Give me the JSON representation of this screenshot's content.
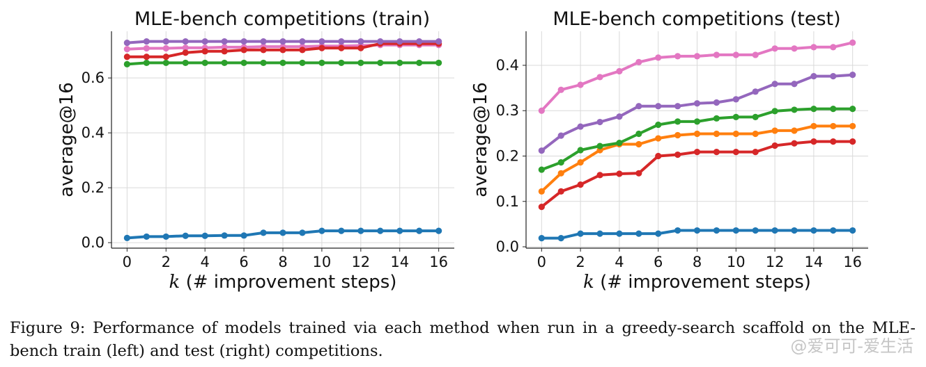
{
  "chart_data": [
    {
      "type": "line",
      "title": "MLE-bench competitions (train)",
      "xlabel_italic": "k",
      "xlabel": " (# improvement steps)",
      "ylabel": "average@16",
      "x": [
        0,
        1,
        2,
        3,
        4,
        5,
        6,
        7,
        8,
        9,
        10,
        11,
        12,
        13,
        14,
        15,
        16
      ],
      "xlim": [
        -0.8,
        16.8
      ],
      "ylim": [
        -0.02,
        0.77
      ],
      "xticks": [
        0,
        2,
        4,
        6,
        8,
        10,
        12,
        14,
        16
      ],
      "yticks": [
        0.0,
        0.2,
        0.4,
        0.6
      ],
      "ytick_labels": [
        "0.0",
        "0.2",
        "0.4",
        "0.6"
      ],
      "grid": true,
      "series": [
        {
          "color": "#1f77b4",
          "values": [
            0.017,
            0.022,
            0.022,
            0.025,
            0.025,
            0.026,
            0.026,
            0.036,
            0.036,
            0.036,
            0.043,
            0.043,
            0.043,
            0.043,
            0.043,
            0.043,
            0.043
          ]
        },
        {
          "color": "#2ca02c",
          "values": [
            0.65,
            0.655,
            0.655,
            0.655,
            0.655,
            0.655,
            0.655,
            0.655,
            0.655,
            0.655,
            0.655,
            0.655,
            0.655,
            0.655,
            0.655,
            0.655,
            0.655
          ]
        },
        {
          "color": "#e377c2",
          "values": [
            0.705,
            0.708,
            0.708,
            0.71,
            0.71,
            0.712,
            0.712,
            0.714,
            0.714,
            0.714,
            0.716,
            0.716,
            0.718,
            0.72,
            0.72,
            0.72,
            0.72
          ]
        },
        {
          "color": "#d62728",
          "values": [
            0.677,
            0.677,
            0.677,
            0.692,
            0.697,
            0.697,
            0.702,
            0.702,
            0.702,
            0.702,
            0.709,
            0.709,
            0.709,
            0.725,
            0.725,
            0.725,
            0.725
          ]
        },
        {
          "color": "#9467bd",
          "values": [
            0.728,
            0.733,
            0.733,
            0.733,
            0.733,
            0.733,
            0.733,
            0.733,
            0.733,
            0.733,
            0.733,
            0.733,
            0.733,
            0.733,
            0.733,
            0.733,
            0.733
          ]
        }
      ]
    },
    {
      "type": "line",
      "title": "MLE-bench competitions (test)",
      "xlabel_italic": "k",
      "xlabel": " (# improvement steps)",
      "ylabel": "average@16",
      "x": [
        0,
        1,
        2,
        3,
        4,
        5,
        6,
        7,
        8,
        9,
        10,
        11,
        12,
        13,
        14,
        15,
        16
      ],
      "xlim": [
        -0.8,
        16.8
      ],
      "ylim": [
        -0.003,
        0.475
      ],
      "xticks": [
        0,
        2,
        4,
        6,
        8,
        10,
        12,
        14,
        16
      ],
      "yticks": [
        0.0,
        0.1,
        0.2,
        0.3,
        0.4
      ],
      "ytick_labels": [
        "0.0",
        "0.1",
        "0.2",
        "0.3",
        "0.4"
      ],
      "grid": true,
      "series": [
        {
          "color": "#1f77b4",
          "values": [
            0.019,
            0.019,
            0.029,
            0.029,
            0.029,
            0.029,
            0.029,
            0.036,
            0.036,
            0.036,
            0.036,
            0.036,
            0.036,
            0.036,
            0.036,
            0.036,
            0.036
          ]
        },
        {
          "color": "#d62728",
          "values": [
            0.088,
            0.122,
            0.137,
            0.158,
            0.161,
            0.162,
            0.2,
            0.203,
            0.209,
            0.209,
            0.209,
            0.209,
            0.223,
            0.228,
            0.232,
            0.232,
            0.232
          ]
        },
        {
          "color": "#ff7f0e",
          "values": [
            0.122,
            0.162,
            0.186,
            0.213,
            0.226,
            0.226,
            0.239,
            0.246,
            0.249,
            0.249,
            0.249,
            0.249,
            0.256,
            0.256,
            0.266,
            0.266,
            0.266
          ]
        },
        {
          "color": "#2ca02c",
          "values": [
            0.17,
            0.186,
            0.213,
            0.222,
            0.229,
            0.249,
            0.269,
            0.276,
            0.276,
            0.283,
            0.286,
            0.286,
            0.299,
            0.302,
            0.304,
            0.304,
            0.304
          ]
        },
        {
          "color": "#9467bd",
          "values": [
            0.212,
            0.245,
            0.265,
            0.275,
            0.287,
            0.31,
            0.31,
            0.31,
            0.316,
            0.318,
            0.325,
            0.342,
            0.359,
            0.359,
            0.376,
            0.376,
            0.379
          ]
        },
        {
          "color": "#e377c2",
          "values": [
            0.3,
            0.346,
            0.357,
            0.374,
            0.387,
            0.407,
            0.417,
            0.42,
            0.42,
            0.423,
            0.423,
            0.423,
            0.437,
            0.437,
            0.44,
            0.44,
            0.45
          ]
        }
      ]
    }
  ],
  "caption": "Figure 9: Performance of models trained via each method when run in a greedy-search scaffold on the MLE-bench train (left) and test (right) competitions.",
  "watermark": "@爱可可-爱生活"
}
